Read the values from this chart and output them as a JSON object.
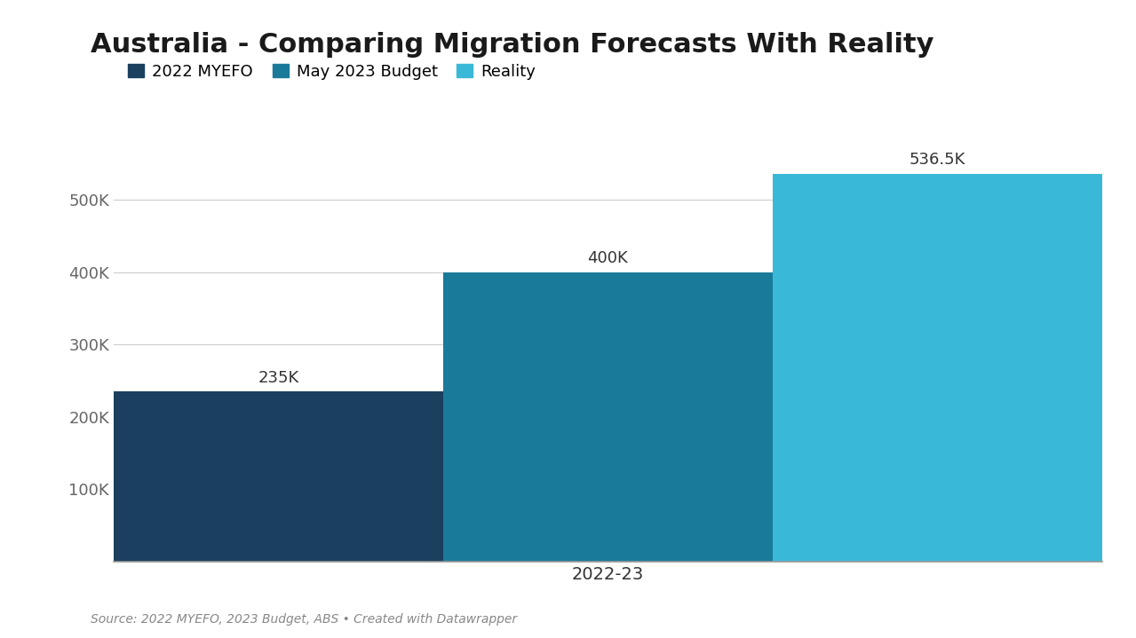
{
  "title": "Australia - Comparing Migration Forecasts With Reality",
  "series": [
    {
      "label": "2022 MYEFO",
      "value": 235000,
      "color": "#1b3f5e"
    },
    {
      "label": "May 2023 Budget",
      "value": 400000,
      "color": "#1a7a9a"
    },
    {
      "label": "Reality",
      "value": 536500,
      "color": "#3ab8d8"
    }
  ],
  "bar_labels": [
    "235K",
    "400K",
    "536.5K"
  ],
  "xlabel": "2022-23",
  "yticks": [
    100000,
    200000,
    300000,
    400000,
    500000
  ],
  "ytick_labels": [
    "100K",
    "200K",
    "300K",
    "400K",
    "500K"
  ],
  "ylim": [
    0,
    600000
  ],
  "source_text": "Source: 2022 MYEFO, 2023 Budget, ABS • Created with Datawrapper",
  "background_color": "#ffffff",
  "grid_color": "#cccccc",
  "title_fontsize": 22,
  "legend_fontsize": 13,
  "tick_fontsize": 13,
  "source_fontsize": 10,
  "bar_label_fontsize": 13
}
